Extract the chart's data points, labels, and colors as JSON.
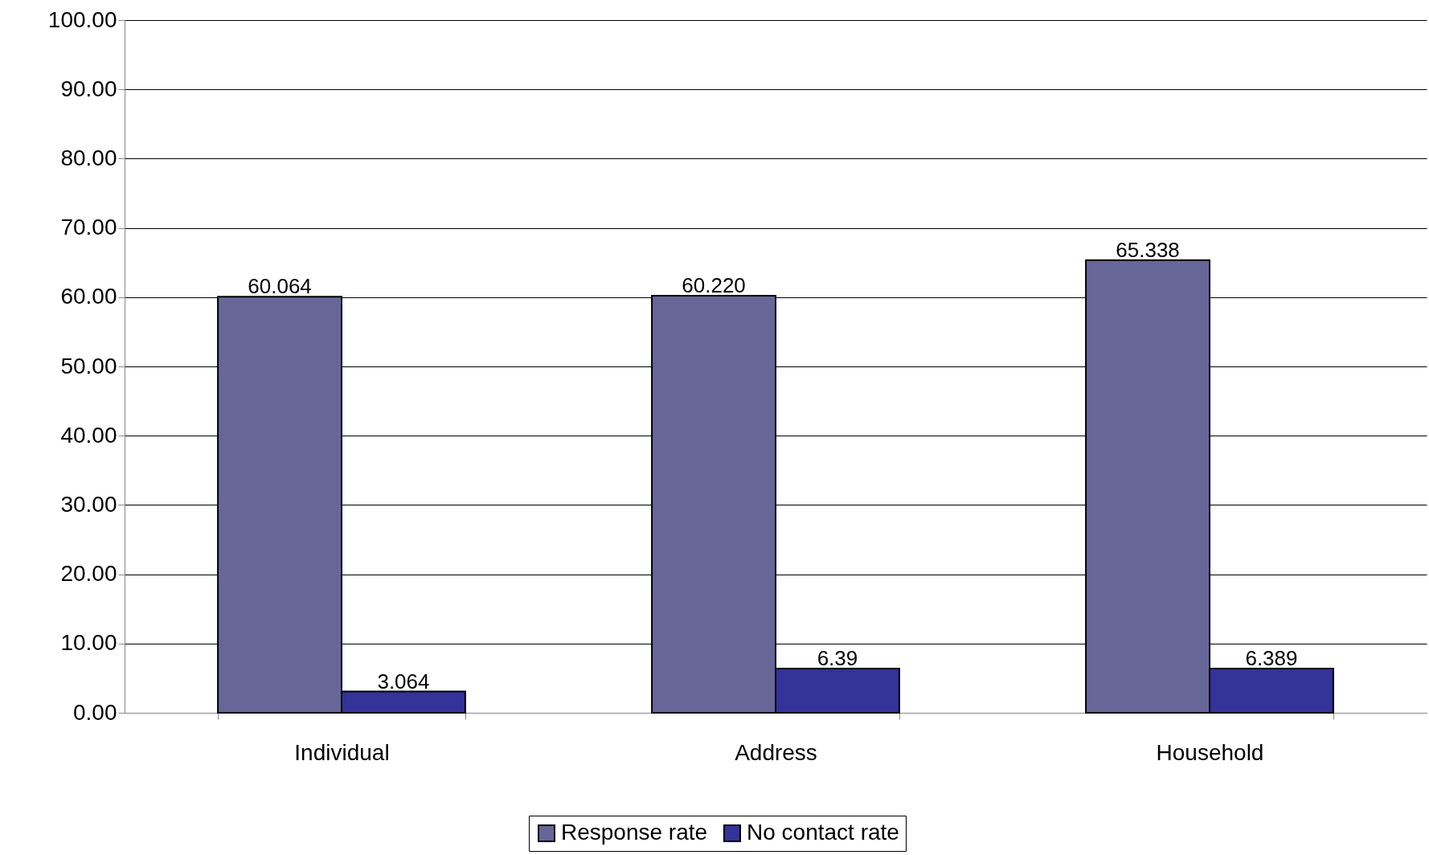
{
  "chart_data": {
    "type": "bar",
    "categories": [
      "Individual",
      "Address",
      "Household"
    ],
    "series": [
      {
        "name": "Response rate",
        "color": "#666699",
        "values": [
          60.064,
          60.22,
          65.338
        ],
        "value_labels": [
          "60.064",
          "60.220",
          "65.338"
        ]
      },
      {
        "name": "No contact rate",
        "color": "#333399",
        "values": [
          3.064,
          6.39,
          6.389
        ],
        "value_labels": [
          "3.064",
          "6.39",
          "6.389"
        ]
      }
    ],
    "ylim": [
      0,
      100
    ],
    "yticks": [
      {
        "value": 0,
        "label": "0.00"
      },
      {
        "value": 10,
        "label": "10.00"
      },
      {
        "value": 20,
        "label": "20.00"
      },
      {
        "value": 30,
        "label": "30.00"
      },
      {
        "value": 40,
        "label": "40.00"
      },
      {
        "value": 50,
        "label": "50.00"
      },
      {
        "value": 60,
        "label": "60.00"
      },
      {
        "value": 70,
        "label": "70.00"
      },
      {
        "value": 80,
        "label": "80.00"
      },
      {
        "value": 90,
        "label": "90.00"
      },
      {
        "value": 100,
        "label": "100.00"
      }
    ],
    "grid": "y",
    "legend": "bottom"
  }
}
